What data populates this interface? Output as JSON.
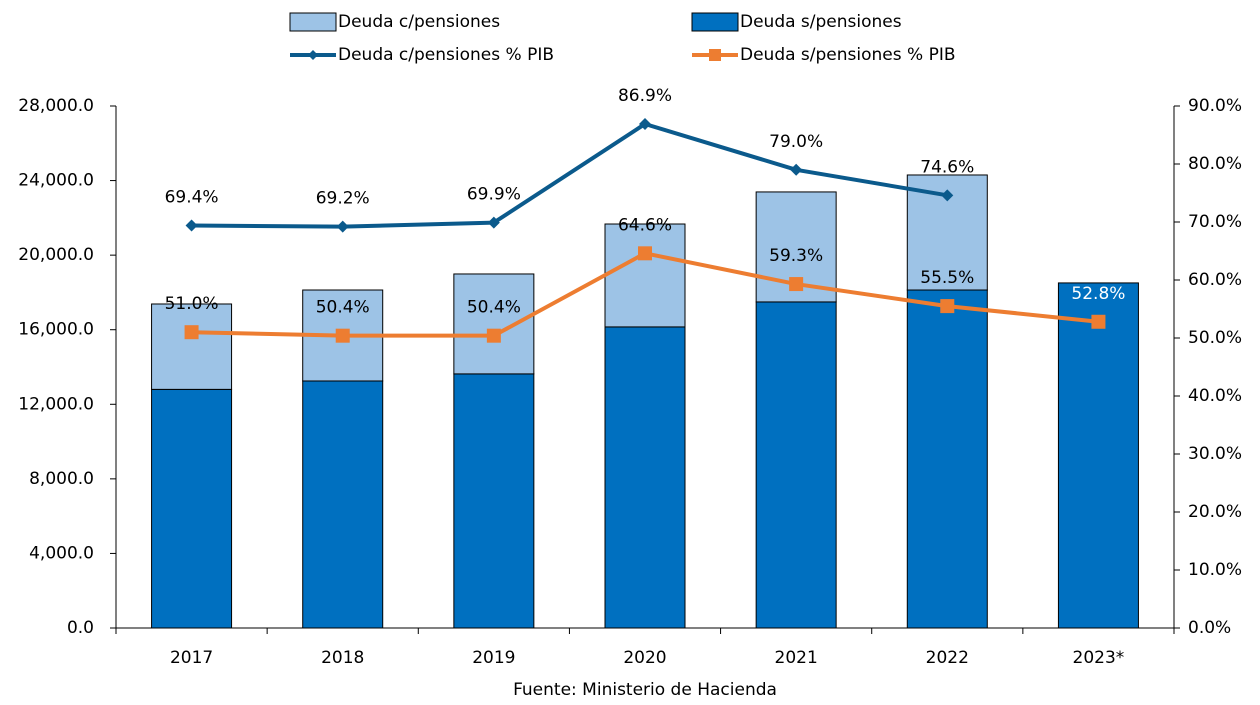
{
  "chart_data": {
    "type": "bar",
    "categories": [
      "2017",
      "2018",
      "2019",
      "2020",
      "2021",
      "2022",
      "2023*"
    ],
    "series": [
      {
        "name": "Deuda s/pensiones",
        "color": "#0070c0",
        "kind": "bar",
        "values": [
          12800,
          13250,
          13630,
          16150,
          17490,
          18130,
          18510
        ]
      },
      {
        "name": "Deuda c/pensiones",
        "color": "#9dc3e6",
        "kind": "bar",
        "values": [
          4580,
          4880,
          5360,
          5520,
          5900,
          6170,
          null
        ]
      },
      {
        "name": "Deuda c/pensiones % PIB",
        "color": "#0b5a8c",
        "kind": "line",
        "marker": "diamond",
        "axis": "y2",
        "values": [
          69.4,
          69.2,
          69.9,
          86.9,
          79.0,
          74.6,
          null
        ],
        "value_labels": [
          "69.4%",
          "69.2%",
          "69.9%",
          "86.9%",
          "79.0%",
          "74.6%",
          null
        ]
      },
      {
        "name": "Deuda s/pensiones % PIB",
        "color": "#ed7d31",
        "kind": "line",
        "marker": "square",
        "axis": "y2",
        "values": [
          51.0,
          50.4,
          50.4,
          64.6,
          59.3,
          55.5,
          52.8
        ],
        "value_labels": [
          "51.0%",
          "50.4%",
          "50.4%",
          "64.6%",
          "59.3%",
          "55.5%",
          "52.8%"
        ]
      }
    ],
    "legend_order": [
      1,
      0,
      2,
      3
    ],
    "ylim": [
      0,
      28000
    ],
    "yticks": [
      {
        "value": 0,
        "label": "0.0"
      },
      {
        "value": 4000,
        "label": "4,000.0"
      },
      {
        "value": 8000,
        "label": "8,000.0"
      },
      {
        "value": 12000,
        "label": "12,000.0"
      },
      {
        "value": 16000,
        "label": "16,000.0"
      },
      {
        "value": 20000,
        "label": "20,000.0"
      },
      {
        "value": 24000,
        "label": "24,000.0"
      },
      {
        "value": 28000,
        "label": "28,000.0"
      }
    ],
    "y2lim": [
      0,
      90
    ],
    "y2ticks": [
      {
        "value": 0,
        "label": "0.0%"
      },
      {
        "value": 10,
        "label": "10.0%"
      },
      {
        "value": 20,
        "label": "20.0%"
      },
      {
        "value": 30,
        "label": "30.0%"
      },
      {
        "value": 40,
        "label": "40.0%"
      },
      {
        "value": 50,
        "label": "50.0%"
      },
      {
        "value": 60,
        "label": "60.0%"
      },
      {
        "value": 70,
        "label": "70.0%"
      },
      {
        "value": 80,
        "label": "80.0%"
      },
      {
        "value": 90,
        "label": "90.0%"
      }
    ],
    "source": "Fuente: Ministerio de Hacienda",
    "grid": false,
    "legend": "top"
  }
}
